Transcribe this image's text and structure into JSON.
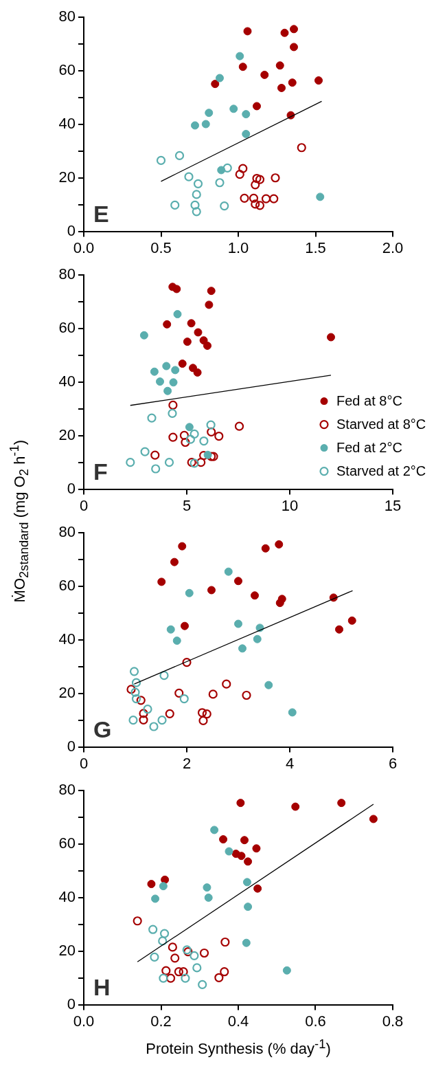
{
  "chart_data": [
    {
      "type": "scatter",
      "annotations": [
        "E"
      ],
      "xlim": [
        0,
        2
      ],
      "xticks": [
        {
          "value": 0,
          "label": "0.0"
        },
        {
          "value": 0.5,
          "label": "0.5"
        },
        {
          "value": 1,
          "label": "1.0"
        },
        {
          "value": 1.5,
          "label": "1.5"
        },
        {
          "value": 2,
          "label": "2.0"
        }
      ],
      "ylim": [
        0,
        80
      ],
      "yticks": [
        0,
        {
          "value": 10,
          "label": null
        },
        20,
        {
          "value": 30,
          "label": null
        },
        40,
        {
          "value": 50,
          "label": null
        },
        60,
        {
          "value": 70,
          "label": null
        },
        80
      ],
      "grid": false,
      "marker": "circle",
      "series": [
        {
          "color": "#a50000",
          "x": [
            1.06,
            1.3,
            1.36,
            1.36,
            1.03,
            1.27,
            1.17,
            0.85,
            1.28,
            1.35,
            1.52,
            1.12,
            1.34
          ],
          "values": [
            74.8,
            74.2,
            75.6,
            68.9,
            61.5,
            62.0,
            58.5,
            55.1,
            53.6,
            55.6,
            56.4,
            46.8,
            43.4
          ]
        },
        {
          "color": "#a50000",
          "x": [
            1.41,
            1.03,
            1.01,
            1.12,
            1.14,
            1.11,
            1.24,
            1.04,
            1.1,
            1.18,
            1.23,
            1.11,
            1.14
          ],
          "values": [
            31.3,
            23.5,
            21.3,
            19.8,
            19.4,
            17.4,
            20.0,
            12.4,
            12.4,
            12.2,
            12.2,
            10.2,
            9.7
          ]
        },
        {
          "color": "#5aaeae",
          "x": [
            1.01,
            0.88,
            0.81,
            0.97,
            1.05,
            0.72,
            0.79,
            1.05,
            0.89,
            1.53
          ],
          "values": [
            65.5,
            57.3,
            44.3,
            45.8,
            43.8,
            39.6,
            40.1,
            36.4,
            22.9,
            12.9
          ]
        },
        {
          "color": "#5aaeae",
          "x": [
            0.5,
            0.62,
            0.68,
            0.74,
            0.93,
            0.88,
            0.73,
            0.59,
            0.72,
            0.73,
            0.91
          ],
          "values": [
            26.5,
            28.3,
            20.4,
            17.8,
            23.7,
            18.2,
            13.8,
            9.8,
            9.8,
            7.4,
            9.5
          ]
        },
        {
          "type": "line",
          "marker": "none",
          "color": "#000000",
          "x": [
            0.5,
            1.54
          ],
          "values": [
            18.7,
            48.6
          ]
        }
      ]
    },
    {
      "type": "scatter",
      "annotations": [
        "F"
      ],
      "ylabel": "ṀO$_{2standard}$ (mg O$_{2}$ h$^{-1}$)",
      "legend": "bottom right",
      "xlim": [
        0,
        15
      ],
      "xticks": [
        0,
        5,
        10,
        15
      ],
      "ylim": [
        0,
        80
      ],
      "yticks": [
        0,
        {
          "value": 10,
          "label": null
        },
        20,
        {
          "value": 30,
          "label": null
        },
        40,
        {
          "value": 50,
          "label": null
        },
        60,
        {
          "value": 70,
          "label": null
        },
        80
      ],
      "grid": false,
      "marker": "circle",
      "series": [
        {
          "name": "Fed at 8°C",
          "color": "#a50000",
          "x": [
            4.31,
            4.51,
            6.19,
            6.08,
            4.04,
            5.22,
            5.55,
            5.82,
            5.03,
            6.0,
            4.79,
            5.3,
            5.52,
            12.0
          ],
          "values": [
            75.6,
            74.8,
            74.1,
            68.9,
            61.6,
            62.0,
            58.6,
            55.6,
            55.1,
            53.6,
            46.9,
            45.3,
            43.6,
            56.8
          ]
        },
        {
          "name": "Starved at 8°C",
          "color": "#a50000",
          "x": [
            4.33,
            7.55,
            6.19,
            6.56,
            4.33,
            4.88,
            4.93,
            3.46,
            6.19,
            6.3,
            5.82,
            5.69,
            5.24
          ],
          "values": [
            31.4,
            23.5,
            21.4,
            19.8,
            19.4,
            20.1,
            17.5,
            12.7,
            12.2,
            12.2,
            12.6,
            10.0,
            10.0
          ]
        },
        {
          "name": "Fed at 2°C",
          "color": "#5aaeae",
          "x": [
            4.55,
            2.93,
            4.01,
            4.44,
            3.43,
            3.7,
            4.35,
            4.07,
            5.13,
            6.02
          ],
          "values": [
            65.4,
            57.5,
            46.0,
            44.5,
            43.9,
            40.2,
            39.9,
            36.7,
            23.2,
            12.8
          ]
        },
        {
          "name": "Starved at 2°C",
          "color": "#5aaeae",
          "x": [
            3.3,
            4.3,
            6.17,
            5.37,
            5.18,
            5.83,
            2.97,
            2.26,
            4.15,
            3.49,
            5.37
          ],
          "values": [
            26.6,
            28.3,
            24.0,
            20.6,
            18.6,
            18.0,
            14.0,
            10.0,
            10.0,
            7.6,
            9.7
          ]
        },
        {
          "type": "line",
          "marker": "none",
          "color": "#000000",
          "x": [
            2.26,
            12.0
          ],
          "values": [
            31.3,
            42.6
          ]
        }
      ]
    },
    {
      "type": "scatter",
      "annotations": [
        "G"
      ],
      "xlim": [
        0,
        6
      ],
      "xticks": [
        0,
        2,
        4,
        6
      ],
      "ylim": [
        0,
        80
      ],
      "yticks": [
        0,
        {
          "value": 10,
          "label": null
        },
        20,
        {
          "value": 30,
          "label": null
        },
        40,
        {
          "value": 50,
          "label": null
        },
        60,
        {
          "value": 70,
          "label": null
        },
        80
      ],
      "grid": false,
      "marker": "circle",
      "series": [
        {
          "color": "#a50000",
          "x": [
            1.91,
            1.76,
            1.51,
            2.48,
            3.0,
            3.32,
            3.53,
            3.79,
            3.85,
            3.81,
            1.96,
            4.85,
            4.96,
            5.21
          ],
          "values": [
            75.0,
            69.1,
            61.7,
            58.6,
            62.0,
            56.6,
            74.2,
            75.7,
            55.3,
            53.8,
            45.2,
            55.8,
            43.9,
            47.2
          ]
        },
        {
          "color": "#a50000",
          "x": [
            2.0,
            2.77,
            0.92,
            1.85,
            2.51,
            3.16,
            1.11,
            1.67,
            1.16,
            1.16,
            2.3,
            2.39,
            2.32
          ],
          "values": [
            31.6,
            23.5,
            21.5,
            20.1,
            19.7,
            19.3,
            17.4,
            12.4,
            12.5,
            10.1,
            12.8,
            12.3,
            9.8
          ]
        },
        {
          "color": "#5aaeae",
          "x": [
            2.81,
            2.05,
            3.0,
            3.42,
            1.69,
            1.81,
            3.37,
            3.08,
            3.59,
            4.05
          ],
          "values": [
            65.5,
            57.5,
            46.0,
            44.5,
            43.9,
            39.7,
            40.3,
            36.8,
            23.1,
            12.9
          ]
        },
        {
          "color": "#5aaeae",
          "x": [
            0.98,
            1.02,
            1.56,
            1.0,
            1.02,
            1.95,
            1.24,
            0.96,
            1.52,
            1.36
          ],
          "values": [
            28.2,
            24.0,
            26.7,
            20.4,
            18.0,
            18.0,
            14.1,
            10.0,
            10.0,
            7.6
          ]
        },
        {
          "type": "line",
          "marker": "none",
          "color": "#000000",
          "x": [
            0.98,
            5.22
          ],
          "values": [
            23.5,
            58.4
          ]
        }
      ]
    },
    {
      "type": "scatter",
      "annotations": [
        "H"
      ],
      "xlabel": "Protein Synthesis (% day$^{-1}$)",
      "xlim": [
        0,
        0.8
      ],
      "xticks": [
        {
          "value": 0,
          "label": "0.0"
        },
        {
          "value": 0.2,
          "label": "0.2"
        },
        {
          "value": 0.4,
          "label": "0.4"
        },
        {
          "value": 0.6,
          "label": "0.6"
        },
        {
          "value": 0.8,
          "label": "0.8"
        }
      ],
      "ylim": [
        0,
        80
      ],
      "yticks": [
        0,
        {
          "value": 10,
          "label": null
        },
        20,
        {
          "value": 30,
          "label": null
        },
        40,
        {
          "value": 50,
          "label": null
        },
        60,
        {
          "value": 70,
          "label": null
        },
        80
      ],
      "grid": false,
      "marker": "circle",
      "series": [
        {
          "color": "#a50000",
          "x": [
            0.406,
            0.548,
            0.361,
            0.416,
            0.447,
            0.394,
            0.408,
            0.425,
            0.45,
            0.175,
            0.21,
            0.667,
            0.75
          ],
          "values": [
            75.4,
            74.0,
            61.8,
            61.5,
            58.4,
            56.4,
            55.6,
            53.5,
            43.4,
            45.1,
            46.7,
            75.4,
            69.4
          ]
        },
        {
          "color": "#a50000",
          "x": [
            0.139,
            0.366,
            0.23,
            0.236,
            0.27,
            0.312,
            0.213,
            0.246,
            0.258,
            0.364,
            0.35,
            0.225
          ],
          "values": [
            31.3,
            23.4,
            21.5,
            17.4,
            19.8,
            19.3,
            12.7,
            12.3,
            12.3,
            12.3,
            10.1,
            9.9
          ]
        },
        {
          "color": "#5aaeae",
          "x": [
            0.338,
            0.376,
            0.206,
            0.319,
            0.423,
            0.185,
            0.323,
            0.425,
            0.421,
            0.526
          ],
          "values": [
            65.3,
            57.3,
            44.3,
            43.8,
            45.8,
            39.6,
            40.0,
            36.6,
            23.1,
            12.8
          ]
        },
        {
          "color": "#5aaeae",
          "x": [
            0.179,
            0.209,
            0.204,
            0.183,
            0.267,
            0.286,
            0.293,
            0.206,
            0.263,
            0.307
          ],
          "values": [
            28.1,
            26.6,
            23.8,
            17.8,
            20.5,
            18.3,
            13.8,
            9.9,
            9.9,
            7.5
          ]
        },
        {
          "type": "line",
          "marker": "none",
          "color": "#000000",
          "x": [
            0.139,
            0.75
          ],
          "values": [
            16.0,
            74.9
          ]
        }
      ]
    }
  ]
}
